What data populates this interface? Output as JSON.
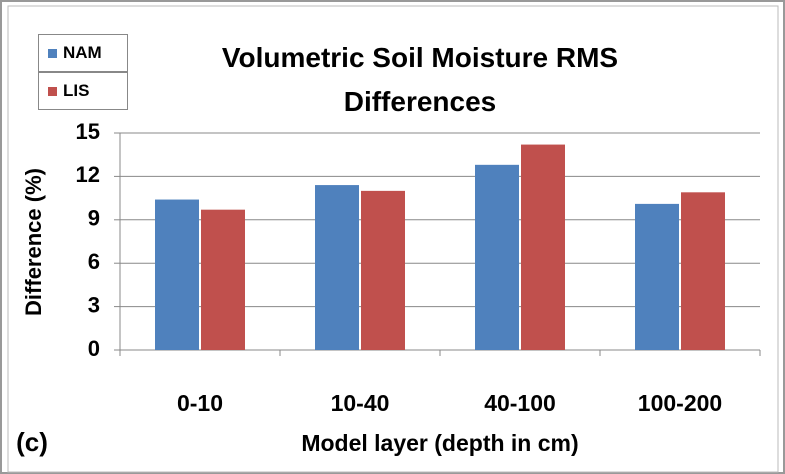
{
  "chart_data": {
    "type": "bar",
    "title": "Volumetric Soil Moisture RMS Differences",
    "x_label": "Model layer (depth in cm)",
    "y_label": "Difference (%)",
    "annotation": "(c)",
    "categories": [
      "0-10",
      "10-40",
      "40-100",
      "100-200"
    ],
    "series": [
      {
        "name": "NAM",
        "color": "#4f81bd",
        "values": [
          10.4,
          11.4,
          12.8,
          10.1
        ]
      },
      {
        "name": "LIS",
        "color": "#c0504d",
        "values": [
          9.7,
          11.0,
          14.2,
          10.9
        ]
      }
    ],
    "ylim": [
      0,
      15
    ],
    "yticks": [
      0,
      3,
      6,
      9,
      12,
      15
    ],
    "grid": true,
    "legend": "top-left"
  }
}
